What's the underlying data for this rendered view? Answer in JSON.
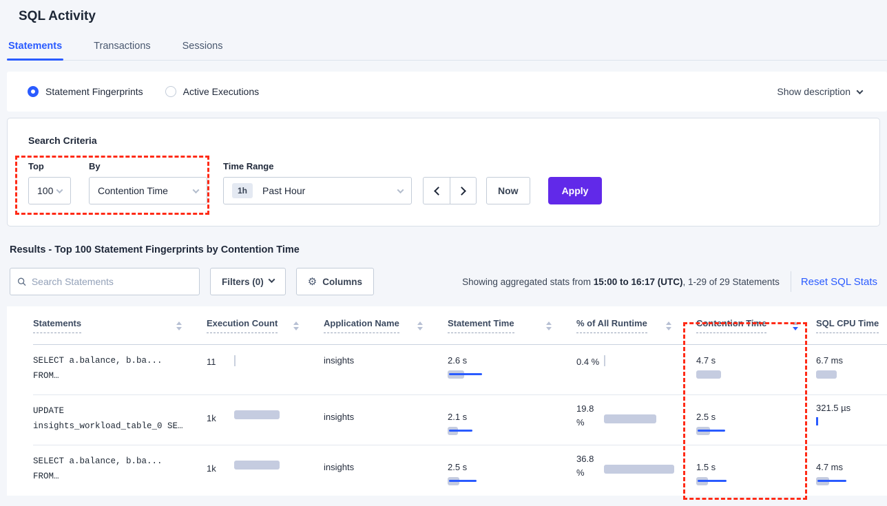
{
  "page": {
    "title": "SQL Activity"
  },
  "tabs": [
    {
      "label": "Statements"
    },
    {
      "label": "Transactions"
    },
    {
      "label": "Sessions"
    }
  ],
  "view_toggle": {
    "fingerprints_label": "Statement Fingerprints",
    "active_exec_label": "Active Executions",
    "show_description_label": "Show description"
  },
  "search_criteria": {
    "heading": "Search Criteria",
    "top": {
      "label": "Top",
      "value": "100"
    },
    "by": {
      "label": "By",
      "value": "Contention Time"
    },
    "time_range": {
      "label": "Time Range",
      "badge": "1h",
      "value": "Past Hour"
    },
    "now_label": "Now",
    "apply_label": "Apply"
  },
  "results": {
    "heading": "Results - Top 100 Statement Fingerprints by Contention Time",
    "search_placeholder": "Search Statements",
    "filters_label": "Filters (0)",
    "columns_label": "Columns",
    "gear_icon": "⚙",
    "stats_prefix": "Showing aggregated stats from ",
    "stats_bold": "15:00 to 16:17 (UTC)",
    "stats_suffix": ", 1-29 of 29 Statements",
    "reset_label": "Reset SQL Stats"
  },
  "table": {
    "headers": {
      "statements": "Statements",
      "execution_count": "Execution Count",
      "application_name": "Application Name",
      "statement_time": "Statement Time",
      "pct_runtime": "% of All Runtime",
      "contention_time": "Contention Time",
      "sql_cpu_time": "SQL CPU Time"
    },
    "sorted_column": "Contention Time",
    "sort_direction": "desc",
    "rows": [
      {
        "statement_line1": "SELECT a.balance, b.ba...",
        "statement_line2": "FROM…",
        "exec_count": "11",
        "app": "insights",
        "stmt_time": "2.6 s",
        "stmt_bar": {
          "gray": 24,
          "blue": 48
        },
        "pct": "0.4 %",
        "contention": "4.7 s",
        "cont_bar": {
          "gray": 36,
          "blue": 0
        },
        "cpu": "6.7 ms",
        "cpu_bar": {
          "gray": 30,
          "blue": 0
        }
      },
      {
        "statement_line1": "UPDATE",
        "statement_line2": "insights_workload_table_0 SE…",
        "exec_count": "1k",
        "exec_bar": {
          "gray": 66
        },
        "app": "insights",
        "stmt_time": "2.1 s",
        "stmt_bar": {
          "gray": 15,
          "blue": 34
        },
        "pct": "19.8 %",
        "pct_bar": {
          "gray": 76
        },
        "contention": "2.5 s",
        "cont_bar": {
          "gray": 20,
          "blue": 40
        },
        "cpu": "321.5 µs"
      },
      {
        "statement_line1": "SELECT a.balance, b.ba...",
        "statement_line2": "FROM…",
        "exec_count": "1k",
        "exec_bar": {
          "gray": 66
        },
        "app": "insights",
        "stmt_time": "2.5 s",
        "stmt_bar": {
          "gray": 17,
          "blue": 40
        },
        "pct": "36.8 %",
        "pct_bar": {
          "gray": 102
        },
        "contention": "1.5 s",
        "cont_bar": {
          "gray": 17,
          "blue": 42
        },
        "cpu": "4.7 ms",
        "cpu_bar": {
          "gray": 19,
          "blue": 42
        }
      }
    ]
  },
  "colors": {
    "accent_blue": "#2a5bff",
    "apply_purple": "#6129e9",
    "bar_gray": "#c5cce0",
    "bar_blue": "#2a5bff",
    "annotation_red": "#ff2b17",
    "background": "#f4f6fa"
  }
}
